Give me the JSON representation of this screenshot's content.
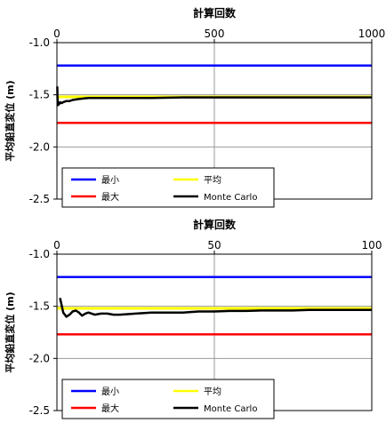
{
  "chart_data": [
    {
      "type": "line",
      "title": "計算回数",
      "xlabel": "計算回数",
      "ylabel": "平均鉛直変位 (m)",
      "xlim": [
        0,
        1000
      ],
      "ylim": [
        -2.5,
        -1.0
      ],
      "x_ticks": [
        "0",
        "500",
        "1000"
      ],
      "y_ticks": [
        "-1.0",
        "-1.5",
        "-2.0",
        "-2.5"
      ],
      "x_axis_position": "top",
      "grid": true,
      "legend_position": "bottom-left",
      "series": [
        {
          "name": "最小",
          "color": "#0000ff",
          "x": [
            0,
            1000
          ],
          "y": [
            -1.22,
            -1.22
          ]
        },
        {
          "name": "平均",
          "color": "#ffff00",
          "x": [
            0,
            1000
          ],
          "y": [
            -1.52,
            -1.52
          ]
        },
        {
          "name": "最大",
          "color": "#ff0000",
          "x": [
            0,
            1000
          ],
          "y": [
            -1.77,
            -1.77
          ]
        },
        {
          "name": "Monte Carlo",
          "color": "#000000",
          "x": [
            1,
            2,
            3,
            4,
            5,
            7,
            10,
            15,
            20,
            30,
            40,
            50,
            70,
            100,
            150,
            200,
            300,
            400,
            500,
            600,
            700,
            800,
            900,
            1000
          ],
          "y": [
            -1.42,
            -1.55,
            -1.6,
            -1.59,
            -1.58,
            -1.59,
            -1.57,
            -1.58,
            -1.57,
            -1.56,
            -1.56,
            -1.55,
            -1.54,
            -1.53,
            -1.53,
            -1.53,
            -1.53,
            -1.525,
            -1.525,
            -1.525,
            -1.525,
            -1.525,
            -1.525,
            -1.525
          ]
        }
      ]
    },
    {
      "type": "line",
      "title": "計算回数",
      "xlabel": "計算回数",
      "ylabel": "平均鉛直変位 (m)",
      "xlim": [
        0,
        100
      ],
      "ylim": [
        -2.5,
        -1.0
      ],
      "x_ticks": [
        "0",
        "50",
        "100"
      ],
      "y_ticks": [
        "-1.0",
        "-1.5",
        "-2.0",
        "-2.5"
      ],
      "x_axis_position": "top",
      "grid": true,
      "legend_position": "bottom-left",
      "series": [
        {
          "name": "最小",
          "color": "#0000ff",
          "x": [
            0,
            100
          ],
          "y": [
            -1.22,
            -1.22
          ]
        },
        {
          "name": "平均",
          "color": "#ffff00",
          "x": [
            0,
            100
          ],
          "y": [
            -1.52,
            -1.52
          ]
        },
        {
          "name": "最大",
          "color": "#ff0000",
          "x": [
            0,
            100
          ],
          "y": [
            -1.77,
            -1.77
          ]
        },
        {
          "name": "Monte Carlo",
          "color": "#000000",
          "x": [
            1,
            2,
            3,
            4,
            5,
            6,
            7,
            8,
            9,
            10,
            12,
            14,
            16,
            18,
            20,
            25,
            30,
            35,
            40,
            45,
            50,
            55,
            60,
            65,
            70,
            75,
            80,
            85,
            90,
            95,
            100
          ],
          "y": [
            -1.42,
            -1.56,
            -1.6,
            -1.58,
            -1.55,
            -1.54,
            -1.56,
            -1.59,
            -1.57,
            -1.56,
            -1.58,
            -1.57,
            -1.57,
            -1.58,
            -1.58,
            -1.57,
            -1.56,
            -1.56,
            -1.56,
            -1.55,
            -1.55,
            -1.545,
            -1.545,
            -1.54,
            -1.54,
            -1.54,
            -1.535,
            -1.535,
            -1.535,
            -1.535,
            -1.535
          ]
        }
      ]
    }
  ]
}
